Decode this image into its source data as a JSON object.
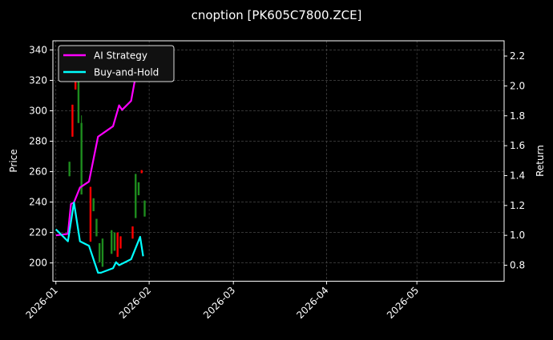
{
  "chart_data": {
    "type": "candlestick+line",
    "title": "cnoption [PK605C7800.ZCE]",
    "xlabel": "",
    "ylabel_left": "Price",
    "ylabel_right": "Return",
    "xlim": [
      "2025-12-31",
      "2026-05-30"
    ],
    "ylim_left": [
      188,
      346
    ],
    "ylim_right": [
      0.693,
      2.302
    ],
    "x_ticks": [
      "2026-01",
      "2026-02",
      "2026-03",
      "2026-04",
      "2026-05"
    ],
    "x_tick_dates": [
      "2026-01-01",
      "2026-02-01",
      "2026-03-01",
      "2026-04-01",
      "2026-05-01"
    ],
    "y_ticks_left": [
      200,
      220,
      240,
      260,
      280,
      300,
      320,
      340
    ],
    "y_ticks_right": [
      "0.8",
      "1.0",
      "1.2",
      "1.4",
      "1.6",
      "1.8",
      "2.0",
      "2.2"
    ],
    "grid": true,
    "legend_position": "upper-left",
    "colors": {
      "background": "#000000",
      "up": "#1e8c1e",
      "down": "#ff0000",
      "ai": "#ff00ff",
      "bh": "#00ffff",
      "grid": "#555555"
    },
    "candles": [
      {
        "date": "2026-01-05",
        "open": 257,
        "high": 266.5,
        "low": 257,
        "close": 266.5
      },
      {
        "date": "2026-01-06",
        "open": 304,
        "high": 304,
        "low": 283,
        "close": 283
      },
      {
        "date": "2026-01-07",
        "open": 320,
        "high": 320,
        "low": 314,
        "close": 314
      },
      {
        "date": "2026-01-08",
        "open": 292,
        "high": 339.5,
        "low": 292,
        "close": 325
      },
      {
        "date": "2026-01-09",
        "open": 245,
        "high": 297,
        "low": 245,
        "close": 292
      },
      {
        "date": "2026-01-12",
        "open": 250,
        "high": 250,
        "low": 214,
        "close": 214
      },
      {
        "date": "2026-01-13",
        "open": 234,
        "high": 242.5,
        "low": 234,
        "close": 242.5
      },
      {
        "date": "2026-01-14",
        "open": 217.5,
        "high": 229,
        "low": 217.5,
        "close": 229
      },
      {
        "date": "2026-01-15",
        "open": 200.5,
        "high": 213,
        "low": 200.5,
        "close": 213
      },
      {
        "date": "2026-01-16",
        "open": 197.5,
        "high": 216,
        "low": 197.5,
        "close": 216
      },
      {
        "date": "2026-01-19",
        "open": 206,
        "high": 221.5,
        "low": 206,
        "close": 221.5
      },
      {
        "date": "2026-01-20",
        "open": 208,
        "high": 220,
        "low": 208,
        "close": 220
      },
      {
        "date": "2026-01-21",
        "open": 220,
        "high": 220,
        "low": 204,
        "close": 204
      },
      {
        "date": "2026-01-22",
        "open": 217.5,
        "high": 217.5,
        "low": 209.5,
        "close": 209.5
      },
      {
        "date": "2026-01-26",
        "open": 224,
        "high": 224,
        "low": 216,
        "close": 216
      },
      {
        "date": "2026-01-27",
        "open": 229.5,
        "high": 258.5,
        "low": 229.5,
        "close": 258.5
      },
      {
        "date": "2026-01-28",
        "open": 244.5,
        "high": 253,
        "low": 244.5,
        "close": 253
      },
      {
        "date": "2026-01-29",
        "open": 261,
        "high": 261,
        "low": 259,
        "close": 259
      },
      {
        "date": "2026-01-30",
        "open": 230.5,
        "high": 241,
        "low": 230.5,
        "close": 241
      }
    ],
    "series": [
      {
        "name": "AI Strategy",
        "axis": "right",
        "dates": [
          "2026-01-01",
          "2026-01-05",
          "2026-01-06",
          "2026-01-07",
          "2026-01-09",
          "2026-01-12",
          "2026-01-15",
          "2026-01-20",
          "2026-01-22",
          "2026-01-23",
          "2026-01-26",
          "2026-01-28",
          "2026-01-30"
        ],
        "values": [
          1.0,
          1.01,
          1.21,
          1.22,
          1.32,
          1.36,
          1.66,
          1.73,
          1.87,
          1.84,
          1.9,
          2.12,
          2.22
        ]
      },
      {
        "name": "Buy-and-Hold",
        "axis": "right",
        "dates": [
          "2026-01-01",
          "2026-01-05",
          "2026-01-07",
          "2026-01-09",
          "2026-01-12",
          "2026-01-15",
          "2026-01-16",
          "2026-01-20",
          "2026-01-21",
          "2026-01-22",
          "2026-01-26",
          "2026-01-29",
          "2026-01-30"
        ],
        "values": [
          1.04,
          0.96,
          1.22,
          0.96,
          0.93,
          0.75,
          0.75,
          0.78,
          0.82,
          0.8,
          0.84,
          0.99,
          0.86
        ]
      }
    ]
  }
}
